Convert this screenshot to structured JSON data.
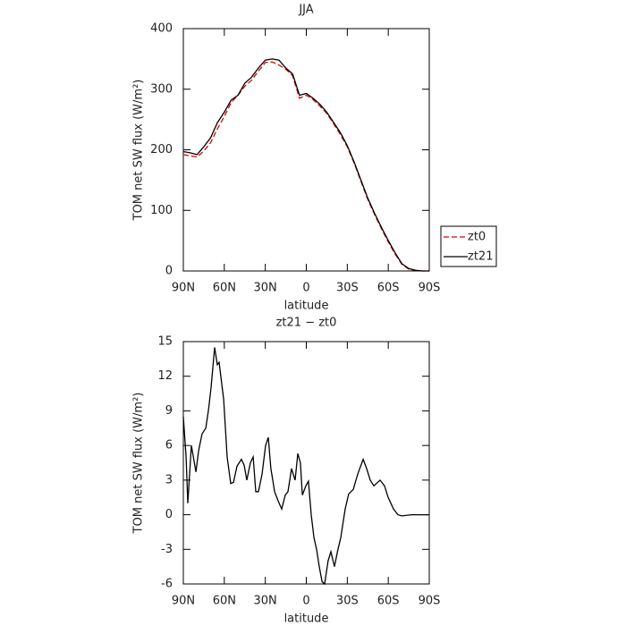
{
  "chart_data": [
    {
      "type": "line",
      "title": "JJA",
      "xlabel": "latitude",
      "ylabel": "TOM net SW flux (W/m²)",
      "x": [
        90,
        85,
        80,
        75,
        70,
        65,
        60,
        55,
        50,
        45,
        40,
        35,
        30,
        25,
        20,
        15,
        10,
        5,
        0,
        -5,
        -10,
        -15,
        -20,
        -25,
        -30,
        -35,
        -40,
        -45,
        -50,
        -55,
        -60,
        -65,
        -70,
        -75,
        -80,
        -85,
        -90
      ],
      "series": [
        {
          "name": "zt0",
          "color": "#e00000",
          "dash": true,
          "values": [
            192,
            190,
            188,
            198,
            212,
            235,
            255,
            278,
            290,
            305,
            315,
            330,
            344,
            345,
            340,
            333,
            322,
            285,
            290,
            283,
            272,
            260,
            243,
            225,
            205,
            178,
            148,
            118,
            93,
            70,
            48,
            28,
            11,
            3,
            1,
            0,
            0
          ]
        },
        {
          "name": "zt21",
          "color": "#000000",
          "dash": false,
          "values": [
            197,
            195,
            192,
            205,
            220,
            245,
            262,
            282,
            290,
            310,
            320,
            335,
            348,
            350,
            348,
            335,
            325,
            290,
            293,
            285,
            275,
            262,
            245,
            228,
            207,
            180,
            150,
            120,
            95,
            72,
            50,
            30,
            12,
            4,
            1,
            0,
            0
          ]
        }
      ],
      "xlim": [
        90,
        -90
      ],
      "ylim": [
        0,
        400
      ],
      "xticks": [
        {
          "value": 90,
          "label": "90N"
        },
        {
          "value": 60,
          "label": "60N"
        },
        {
          "value": 30,
          "label": "30N"
        },
        0,
        {
          "value": -30,
          "label": "30S"
        },
        {
          "value": -60,
          "label": "60S"
        },
        {
          "value": -90,
          "label": "90S"
        }
      ],
      "yticks": [
        0,
        100,
        200,
        300,
        400
      ],
      "legend": "outside-right"
    },
    {
      "type": "line",
      "title": "zt21 − zt0",
      "xlabel": "latitude",
      "ylabel": "TOM net SW flux (W/m²)",
      "x": [
        90,
        88,
        86.7,
        84.1,
        80.8,
        78.9,
        76.3,
        73.6,
        71.7,
        69.7,
        67.1,
        65.1,
        63.8,
        60.5,
        57.9,
        55.3,
        53.3,
        50.7,
        47.5,
        45.5,
        43.5,
        40.9,
        38.9,
        37,
        35,
        32.4,
        29.8,
        27.8,
        25.9,
        23.2,
        20.6,
        18,
        15.4,
        13.4,
        10.8,
        8.2,
        6.2,
        4.3,
        2.9,
        0.3,
        -1.6,
        -3.6,
        -5.6,
        -7.5,
        -9.5,
        -11.5,
        -13.4,
        -16,
        -18,
        -20.6,
        -23.2,
        -25.2,
        -28.5,
        -31,
        -34.4,
        -37.6,
        -41.6,
        -44.2,
        -46.8,
        -49.4,
        -54,
        -57.3,
        -59.9,
        -63.8,
        -67.1,
        -70,
        -77,
        -90
      ],
      "values": [
        8.5,
        5,
        1,
        6,
        3.7,
        5.5,
        7,
        7.5,
        9,
        11,
        14.5,
        13,
        13.2,
        10,
        5,
        2.7,
        2.8,
        4.2,
        4.8,
        4.3,
        3,
        4.5,
        5,
        2,
        2,
        3.5,
        6,
        6.7,
        4,
        2,
        1.2,
        0.5,
        1.7,
        2,
        4,
        3,
        5.3,
        4.5,
        1.7,
        2.5,
        2.9,
        0,
        -2,
        -3,
        -4.5,
        -5.8,
        -6,
        -4,
        -3.2,
        -4.5,
        -3,
        -2,
        0.5,
        1.8,
        2.2,
        3.5,
        4.8,
        4,
        3,
        2.5,
        3,
        2.5,
        1.5,
        0.5,
        0,
        -0.1,
        0,
        0
      ],
      "color": "#000000",
      "xlim": [
        90,
        -90
      ],
      "ylim": [
        -6,
        15
      ],
      "xticks": [
        {
          "value": 90,
          "label": "90N"
        },
        {
          "value": 60,
          "label": "60N"
        },
        {
          "value": 30,
          "label": "30N"
        },
        0,
        {
          "value": -30,
          "label": "30S"
        },
        {
          "value": -60,
          "label": "60S"
        },
        {
          "value": -90,
          "label": "90S"
        }
      ],
      "yticks": [
        -6,
        -3,
        0,
        3,
        6,
        9,
        12,
        15
      ]
    }
  ]
}
